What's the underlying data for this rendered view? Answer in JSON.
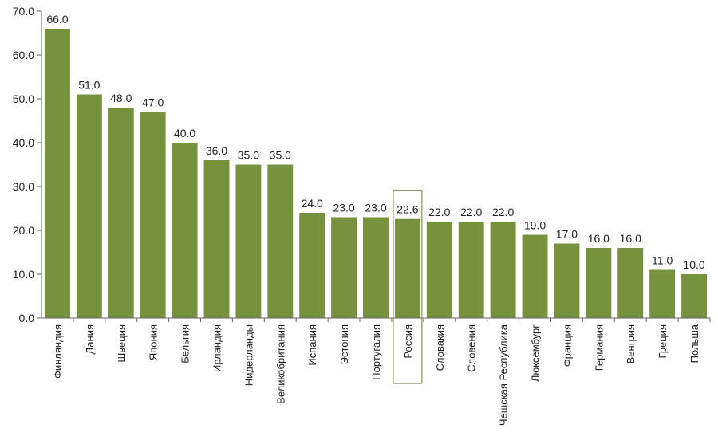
{
  "chart_data": {
    "type": "bar",
    "title": "",
    "xlabel": "",
    "ylabel": "",
    "ylim": [
      0,
      70
    ],
    "yticks": [
      "0.0",
      "10.0",
      "20.0",
      "30.0",
      "40.0",
      "50.0",
      "60.0",
      "70.0"
    ],
    "categories": [
      "Финляндия",
      "Дания",
      "Швеция",
      "Япония",
      "Бельгия",
      "Ирландия",
      "Нидерланды",
      "Великобритания",
      "Испания",
      "Эстония",
      "Португалия",
      "Россия",
      "Словакия",
      "Словения",
      "Чешская Республика",
      "Люксембург",
      "Франция",
      "Германия",
      "Венгрия",
      "Греция",
      "Польша"
    ],
    "values": [
      66.0,
      51.0,
      48.0,
      47.0,
      40.0,
      36.0,
      35.0,
      35.0,
      24.0,
      23.0,
      23.0,
      22.6,
      22.0,
      22.0,
      22.0,
      19.0,
      17.0,
      16.0,
      16.0,
      11.0,
      10.0
    ],
    "value_labels": [
      "66.0",
      "51.0",
      "48.0",
      "47.0",
      "40.0",
      "36.0",
      "35.0",
      "35.0",
      "24.0",
      "23.0",
      "23.0",
      "22.6",
      "22.0",
      "22.0",
      "22.0",
      "19.0",
      "17.0",
      "16.0",
      "16.0",
      "11.0",
      "10.0"
    ],
    "highlighted_category": "Россия",
    "bar_color": "#76923c",
    "highlight_box_color": "#8a9a5b",
    "grid": false,
    "legend": "none"
  }
}
